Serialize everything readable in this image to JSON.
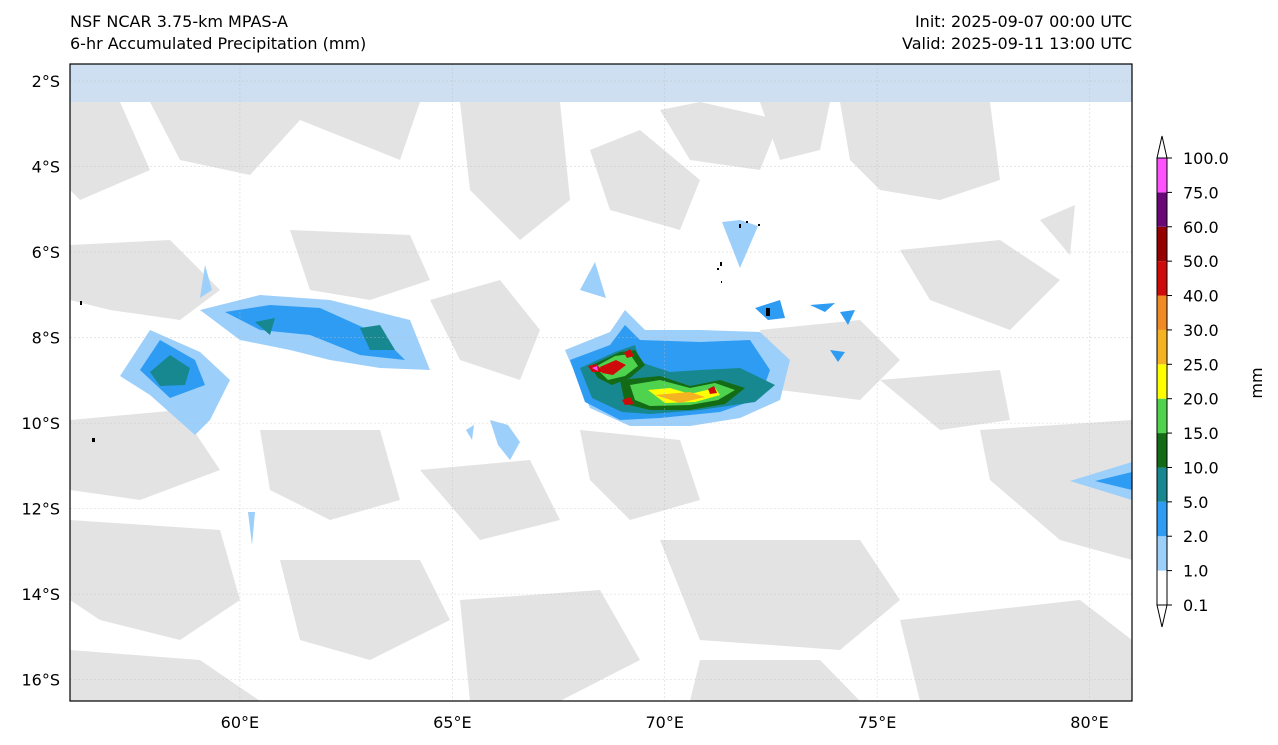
{
  "header": {
    "model": "NSF NCAR 3.75-km MPAS-A",
    "field": "6-hr Accumulated Precipitation (mm)",
    "init": "Init: 2025-09-07 00:00 UTC",
    "valid": "Valid: 2025-09-11 13:00 UTC"
  },
  "map": {
    "lon_range": [
      56,
      81
    ],
    "lat_range": [
      -16.5,
      -1.6
    ],
    "lat_ticks": [
      {
        "value": -2,
        "label": "2°S"
      },
      {
        "value": -4,
        "label": "4°S"
      },
      {
        "value": -6,
        "label": "6°S"
      },
      {
        "value": -8,
        "label": "8°S"
      },
      {
        "value": -10,
        "label": "10°S"
      },
      {
        "value": -12,
        "label": "12°S"
      },
      {
        "value": -14,
        "label": "14°S"
      },
      {
        "value": -16,
        "label": "16°S"
      }
    ],
    "lon_ticks": [
      {
        "value": 60,
        "label": "60°E"
      },
      {
        "value": 65,
        "label": "65°E"
      },
      {
        "value": 70,
        "label": "70°E"
      },
      {
        "value": 75,
        "label": "75°E"
      },
      {
        "value": 80,
        "label": "80°E"
      }
    ],
    "grid": true
  },
  "colorbar": {
    "unit_label": "mm",
    "levels": [
      "0.1",
      "1.0",
      "2.0",
      "5.0",
      "10.0",
      "15.0",
      "20.0",
      "25.0",
      "30.0",
      "40.0",
      "50.0",
      "60.0",
      "75.0",
      "100.0"
    ],
    "colors": [
      "#ffffff",
      "#9ccffa",
      "#2f9cf4",
      "#17888f",
      "#146b16",
      "#4fd34f",
      "#ffff00",
      "#f5b323",
      "#ef8a24",
      "#cf0a0a",
      "#960000",
      "#6a0878",
      "#ff52ff"
    ],
    "under_color": "#ffffff",
    "over_color": "#ffffff"
  },
  "colors": {
    "light_precip_gray": "#e3e3e3",
    "top_band": "#cddff0"
  }
}
